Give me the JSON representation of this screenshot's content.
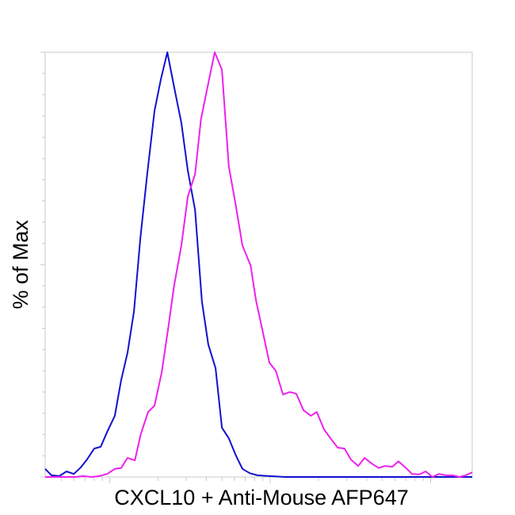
{
  "chart_data": {
    "type": "line",
    "title": "",
    "xlabel": "CXCL10 + Anti-Mouse AFP647",
    "ylabel": "% of Max",
    "x_scale": "log (biexponential), unlabeled ticks",
    "xlim": [
      0,
      100
    ],
    "ylim": [
      0,
      100
    ],
    "grid": false,
    "legend": "none",
    "series": [
      {
        "color": "#1010d0",
        "points": [
          [
            0,
            1.9
          ],
          [
            1.5,
            0.4
          ],
          [
            3.3,
            0.2
          ],
          [
            5.0,
            1.3
          ],
          [
            6.7,
            0.7
          ],
          [
            8.3,
            2.2
          ],
          [
            9.8,
            4.1
          ],
          [
            11.5,
            6.7
          ],
          [
            13.0,
            7.1
          ],
          [
            14.5,
            10.6
          ],
          [
            16.3,
            14.4
          ],
          [
            17.8,
            22.8
          ],
          [
            19.3,
            29.3
          ],
          [
            20.8,
            39.0
          ],
          [
            22.3,
            56.3
          ],
          [
            23.9,
            71.3
          ],
          [
            25.6,
            86.2
          ],
          [
            27.1,
            93.7
          ],
          [
            28.6,
            100
          ],
          [
            30.2,
            91.8
          ],
          [
            31.9,
            83.4
          ],
          [
            33.4,
            72.2
          ],
          [
            35.1,
            62.9
          ],
          [
            36.7,
            41.4
          ],
          [
            38.2,
            31.2
          ],
          [
            39.9,
            25.6
          ],
          [
            41.4,
            11.6
          ],
          [
            43.0,
            9.1
          ],
          [
            44.7,
            5.0
          ],
          [
            46.2,
            1.9
          ],
          [
            47.9,
            0.9
          ],
          [
            49.7,
            0.4
          ],
          [
            52.5,
            0.2
          ],
          [
            56.2,
            0
          ],
          [
            100,
            0
          ]
        ]
      },
      {
        "color": "#ee20ee",
        "points": [
          [
            0,
            0
          ],
          [
            7.1,
            0
          ],
          [
            8.9,
            0.2
          ],
          [
            10.8,
            0
          ],
          [
            12.6,
            0.2
          ],
          [
            14.5,
            0.7
          ],
          [
            16.3,
            1.9
          ],
          [
            17.8,
            2.1
          ],
          [
            19.3,
            4.5
          ],
          [
            21.0,
            3.9
          ],
          [
            22.4,
            10.1
          ],
          [
            24.1,
            15.3
          ],
          [
            25.6,
            16.8
          ],
          [
            27.3,
            24.6
          ],
          [
            28.8,
            34.9
          ],
          [
            30.2,
            45.1
          ],
          [
            31.9,
            54.5
          ],
          [
            33.4,
            66.0
          ],
          [
            35.1,
            71.3
          ],
          [
            36.5,
            84.3
          ],
          [
            38.2,
            92.7
          ],
          [
            39.7,
            100
          ],
          [
            41.4,
            95.9
          ],
          [
            43.0,
            73.1
          ],
          [
            44.5,
            64.7
          ],
          [
            46.2,
            54.5
          ],
          [
            48.1,
            49.8
          ],
          [
            49.4,
            41.4
          ],
          [
            51.0,
            34.0
          ],
          [
            52.5,
            26.9
          ],
          [
            54.0,
            25.0
          ],
          [
            55.7,
            19.4
          ],
          [
            57.3,
            20.0
          ],
          [
            58.8,
            19.6
          ],
          [
            60.5,
            15.7
          ],
          [
            62.2,
            14.4
          ],
          [
            63.6,
            15.3
          ],
          [
            65.3,
            11.2
          ],
          [
            66.8,
            9.1
          ],
          [
            68.5,
            6.9
          ],
          [
            70.1,
            6.7
          ],
          [
            71.6,
            4.1
          ],
          [
            73.3,
            2.6
          ],
          [
            74.8,
            4.5
          ],
          [
            76.4,
            3.2
          ],
          [
            78.1,
            2.1
          ],
          [
            79.6,
            2.6
          ],
          [
            81.3,
            2.4
          ],
          [
            82.7,
            3.7
          ],
          [
            84.4,
            2.2
          ],
          [
            85.9,
            0.7
          ],
          [
            87.6,
            0.6
          ],
          [
            89.1,
            1.3
          ],
          [
            90.7,
            0
          ],
          [
            92.2,
            0.7
          ],
          [
            93.9,
            0.4
          ],
          [
            95.4,
            0.4
          ],
          [
            97.0,
            0
          ],
          [
            98.5,
            0.4
          ],
          [
            100,
            1.1
          ]
        ]
      }
    ]
  }
}
